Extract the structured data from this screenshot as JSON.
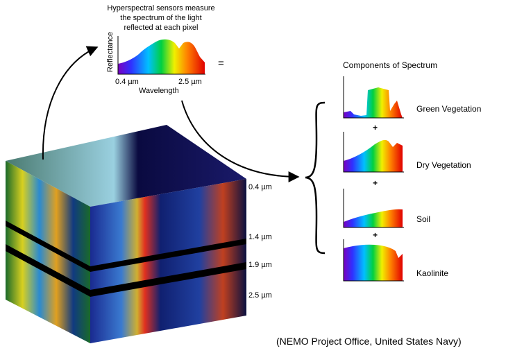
{
  "spectrum_panel": {
    "caption": [
      "Hyperspectral sensors measure",
      "the spectrum of the light",
      "reflected at each pixel"
    ],
    "y_label": "Reflectance",
    "x_label": "Wavelength",
    "x_start": "0.4 µm",
    "x_end": "2.5 µm"
  },
  "equals": "=",
  "components": {
    "title": "Components of Spectrum",
    "items": [
      {
        "label": "Green Vegetation"
      },
      {
        "label": "Dry Vegetation"
      },
      {
        "label": "Soil"
      },
      {
        "label": "Kaolinite"
      }
    ],
    "operators": [
      "+",
      "+",
      "+"
    ]
  },
  "cube": {
    "band_labels": [
      "0.4 µm",
      "1.4 µm",
      "1.9 µm",
      "2.5 µm"
    ]
  },
  "credit": "(NEMO Project Office, United States Navy)"
}
